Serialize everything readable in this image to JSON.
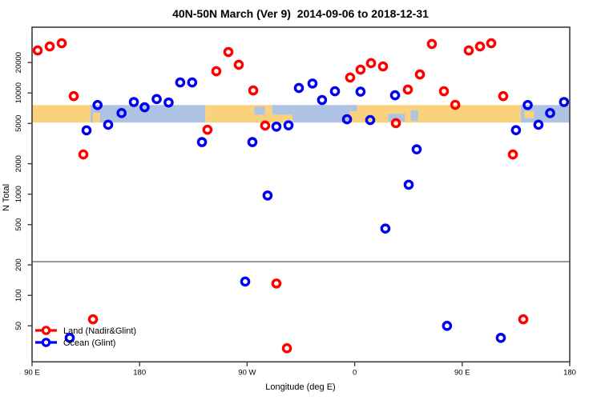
{
  "title": "40N-50N March (Ver 9)  2014-09-06 to 2018-12-31",
  "axes": {
    "ylabel": "N Total",
    "xlabel": "Longitude (deg E)"
  },
  "legend": {
    "items": [
      {
        "label": "Land (Nadir&Glint)",
        "color": "#ff0000"
      },
      {
        "label": "Ocean (Glint)",
        "color": "#0000ee"
      }
    ]
  },
  "colors": {
    "land_series": "#ff0000",
    "ocean_series": "#0000ee",
    "map_land": "#fad27e",
    "map_ocean": "#aec3e4",
    "reference_line": "#8a8a8a",
    "axis": "#3c3c3c"
  },
  "chart_data": {
    "type": "scatter",
    "title": "40N-50N March (Ver 9)  2014-09-06 to 2018-12-31",
    "xlabel": "Longitude (deg E)",
    "ylabel": "N Total",
    "x_axis": {
      "note": "longitude axis runs 90E eastward wrapping to 180 (axis coords 90..540 deg)",
      "range": [
        90,
        540
      ],
      "ticks": [
        {
          "pos": 90,
          "label": "90 E"
        },
        {
          "pos": 180,
          "label": "180"
        },
        {
          "pos": 270,
          "label": "90 W"
        },
        {
          "pos": 360,
          "label": "0"
        },
        {
          "pos": 450,
          "label": "90 E"
        },
        {
          "pos": 540,
          "label": "180"
        }
      ]
    },
    "y_axis": {
      "scale": "log10",
      "range": [
        22,
        36000
      ],
      "ticks": [
        20000,
        10000,
        5000,
        2000,
        1000,
        500,
        200,
        100,
        50
      ]
    },
    "grid": false,
    "legend_position": "bottom-left",
    "reference_line_n": 215,
    "map_strip": {
      "n_top": 7600,
      "n_bottom": 5100,
      "segments": [
        {
          "from": 90,
          "to": 139,
          "surface": "land"
        },
        {
          "from": 139,
          "to": 235,
          "surface": "ocean",
          "patches": [
            {
              "from": 141,
              "to": 147,
              "surface": "land",
              "top": 0.45,
              "bottom": 1.0
            }
          ]
        },
        {
          "from": 235,
          "to": 291,
          "surface": "land",
          "patches": [
            {
              "from": 276,
              "to": 285,
              "surface": "ocean",
              "top": 0.1,
              "bottom": 0.55
            }
          ]
        },
        {
          "from": 291,
          "to": 308,
          "surface": "ocean",
          "patches": [
            {
              "from": 291,
              "to": 308,
              "surface": "land",
              "top": 0.55,
              "bottom": 1.0
            }
          ]
        },
        {
          "from": 308,
          "to": 356,
          "surface": "ocean"
        },
        {
          "from": 356,
          "to": 499,
          "surface": "land",
          "patches": [
            {
              "from": 388,
              "to": 402,
              "surface": "ocean",
              "top": 0.5,
              "bottom": 0.95
            },
            {
              "from": 407,
              "to": 413,
              "surface": "ocean",
              "top": 0.3,
              "bottom": 0.9
            },
            {
              "from": 356,
              "to": 362,
              "surface": "ocean",
              "top": 0.0,
              "bottom": 0.35
            }
          ]
        },
        {
          "from": 499,
          "to": 540,
          "surface": "ocean",
          "patches": [
            {
              "from": 502,
              "to": 510,
              "surface": "land",
              "top": 0.35,
              "bottom": 0.75
            }
          ]
        }
      ]
    },
    "series": [
      {
        "name": "Land (Nadir&Glint)",
        "color": "#ff0000",
        "points": [
          [
            94.7,
            26300
          ],
          [
            104.8,
            28800
          ],
          [
            114.8,
            31000
          ],
          [
            124.9,
            9300
          ],
          [
            132.9,
            2470
          ],
          [
            141.0,
            58
          ],
          [
            236.8,
            4330
          ],
          [
            244.2,
            16400
          ],
          [
            254.3,
            25400
          ],
          [
            263.0,
            19000
          ],
          [
            275.1,
            10600
          ],
          [
            285.1,
            4760
          ],
          [
            294.5,
            131
          ],
          [
            303.3,
            30
          ],
          [
            356.2,
            14200
          ],
          [
            364.9,
            17000
          ],
          [
            373.7,
            19700
          ],
          [
            383.7,
            18300
          ],
          [
            394.5,
            5030
          ],
          [
            404.5,
            10800
          ],
          [
            414.6,
            15250
          ],
          [
            424.6,
            30500
          ],
          [
            434.7,
            10400
          ],
          [
            444.2,
            7640
          ],
          [
            455.5,
            26300
          ],
          [
            464.9,
            28800
          ],
          [
            474.3,
            31000
          ],
          [
            484.3,
            9300
          ],
          [
            492.4,
            2470
          ],
          [
            501.1,
            58
          ]
        ]
      },
      {
        "name": "Ocean (Glint)",
        "color": "#0000ee",
        "points": [
          [
            121.5,
            38
          ],
          [
            135.6,
            4270
          ],
          [
            144.8,
            7600
          ],
          [
            153.7,
            4850
          ],
          [
            164.9,
            6330
          ],
          [
            175.2,
            8140
          ],
          [
            184.2,
            7230
          ],
          [
            194.3,
            8700
          ],
          [
            204.3,
            8050
          ],
          [
            214.0,
            12700
          ],
          [
            224.0,
            12700
          ],
          [
            232.2,
            3270
          ],
          [
            268.4,
            137
          ],
          [
            274.4,
            3270
          ],
          [
            287.1,
            970
          ],
          [
            294.5,
            4650
          ],
          [
            304.6,
            4790
          ],
          [
            313.3,
            11200
          ],
          [
            324.7,
            12400
          ],
          [
            332.7,
            8520
          ],
          [
            343.5,
            10400
          ],
          [
            353.6,
            5500
          ],
          [
            364.9,
            10300
          ],
          [
            373.0,
            5400
          ],
          [
            385.7,
            457
          ],
          [
            393.8,
            9500
          ],
          [
            405.2,
            1240
          ],
          [
            411.9,
            2770
          ],
          [
            437.3,
            50
          ],
          [
            482.3,
            38
          ],
          [
            495.0,
            4290
          ],
          [
            504.8,
            7600
          ],
          [
            513.8,
            4850
          ],
          [
            523.6,
            6330
          ],
          [
            535.2,
            8140
          ]
        ]
      }
    ]
  }
}
